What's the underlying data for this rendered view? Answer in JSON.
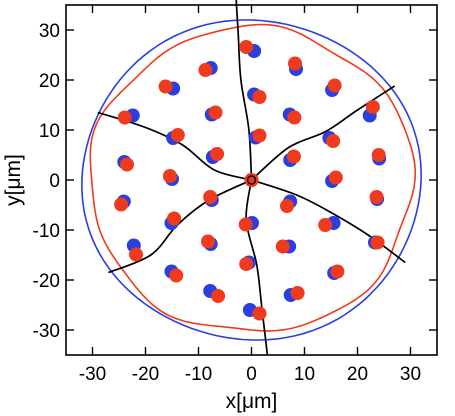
{
  "chart_data": {
    "type": "scatter",
    "title": "",
    "xlabel": "x[μm]",
    "ylabel": "y[μm]",
    "xlim": [
      -35,
      35
    ],
    "ylim": [
      -35,
      35
    ],
    "xticks": [
      -30,
      -20,
      -10,
      0,
      10,
      20,
      30
    ],
    "yticks": [
      -30,
      -20,
      -10,
      0,
      10,
      20,
      30
    ],
    "grid": false,
    "legend": "none",
    "colors": {
      "blue": "#2a3fe0",
      "red": "#ef3b1d",
      "curves": "#000000",
      "axes": "#000000"
    },
    "boundaries": [
      {
        "color": "blue",
        "radius": 32
      },
      {
        "color": "red",
        "radius": 30.5
      }
    ],
    "series": [
      {
        "color": "blue",
        "points": [
          [
            0.5,
            25.8
          ],
          [
            8.4,
            22.2
          ],
          [
            15.2,
            18.0
          ],
          [
            22.3,
            12.9
          ],
          [
            24.1,
            4.3
          ],
          [
            23.7,
            -3.8
          ],
          [
            23.3,
            -12.5
          ],
          [
            15.6,
            -18.6
          ],
          [
            7.4,
            -23.0
          ],
          [
            -0.3,
            -26.0
          ],
          [
            -7.8,
            -22.2
          ],
          [
            -15.1,
            -18.3
          ],
          [
            -22.2,
            -13.1
          ],
          [
            -24.1,
            -4.3
          ],
          [
            -24.0,
            3.6
          ],
          [
            -22.4,
            12.9
          ],
          [
            -14.8,
            18.3
          ],
          [
            -7.7,
            22.4
          ],
          [
            0.5,
            17.1
          ],
          [
            7.2,
            13.1
          ],
          [
            14.7,
            8.4
          ],
          [
            15.2,
            -0.2
          ],
          [
            15.5,
            -8.6
          ],
          [
            7.1,
            -13.3
          ],
          [
            -0.5,
            -16.5
          ],
          [
            -7.7,
            -12.8
          ],
          [
            -15.1,
            -8.6
          ],
          [
            -15.0,
            0.2
          ],
          [
            -14.8,
            8.4
          ],
          [
            -7.5,
            13.1
          ],
          [
            0.8,
            8.5
          ],
          [
            7.3,
            4.0
          ],
          [
            7.3,
            -4.3
          ],
          [
            0.1,
            -8.6
          ],
          [
            -7.5,
            -4.0
          ],
          [
            -7.3,
            4.6
          ],
          [
            0,
            0
          ]
        ]
      },
      {
        "color": "red",
        "points": [
          [
            -1.0,
            26.6
          ],
          [
            8.2,
            23.3
          ],
          [
            15.7,
            18.9
          ],
          [
            22.9,
            14.6
          ],
          [
            24.0,
            5.0
          ],
          [
            23.6,
            -3.4
          ],
          [
            23.8,
            -12.5
          ],
          [
            16.2,
            -18.3
          ],
          [
            8.7,
            -22.6
          ],
          [
            1.5,
            -26.7
          ],
          [
            -6.3,
            -23.2
          ],
          [
            -14.2,
            -19.1
          ],
          [
            -21.8,
            -14.9
          ],
          [
            -24.6,
            -4.9
          ],
          [
            -23.5,
            3.1
          ],
          [
            -23.9,
            12.5
          ],
          [
            -16.2,
            18.7
          ],
          [
            -8.7,
            22.0
          ],
          [
            1.5,
            16.6
          ],
          [
            8.1,
            12.5
          ],
          [
            15.4,
            7.8
          ],
          [
            15.9,
            0.5
          ],
          [
            13.9,
            -9.0
          ],
          [
            5.9,
            -13.3
          ],
          [
            -1.0,
            -16.8
          ],
          [
            -8.2,
            -12.3
          ],
          [
            -14.6,
            -7.7
          ],
          [
            -15.4,
            0.8
          ],
          [
            -13.9,
            9.0
          ],
          [
            -6.8,
            13.5
          ],
          [
            1.5,
            8.9
          ],
          [
            8.0,
            4.7
          ],
          [
            6.7,
            -5.2
          ],
          [
            -1.1,
            -8.9
          ],
          [
            -7.8,
            -3.4
          ],
          [
            -6.5,
            5.2
          ],
          [
            0,
            0
          ]
        ]
      }
    ],
    "curves": [
      {
        "points": [
          [
            0,
            0
          ],
          [
            -0.5,
            10
          ],
          [
            -2,
            20
          ],
          [
            -2.5,
            29
          ],
          [
            -3,
            38
          ]
        ]
      },
      {
        "points": [
          [
            0,
            0
          ],
          [
            7,
            6.5
          ],
          [
            14,
            9.7
          ],
          [
            20,
            14
          ],
          [
            27,
            18.8
          ]
        ]
      },
      {
        "points": [
          [
            0,
            0
          ],
          [
            8.5,
            -3
          ],
          [
            15,
            -6.5
          ],
          [
            22,
            -11
          ],
          [
            29,
            -16.5
          ]
        ]
      },
      {
        "points": [
          [
            0,
            0
          ],
          [
            -1,
            -8
          ],
          [
            1,
            -17
          ],
          [
            2,
            -26
          ],
          [
            3,
            -35
          ]
        ]
      },
      {
        "points": [
          [
            0,
            0
          ],
          [
            -8,
            -4
          ],
          [
            -14,
            -9
          ],
          [
            -19,
            -15
          ],
          [
            -27,
            -18.5
          ]
        ]
      },
      {
        "points": [
          [
            0,
            0
          ],
          [
            -7,
            2
          ],
          [
            -13,
            7
          ],
          [
            -20,
            10.5
          ],
          [
            -29,
            13.5
          ]
        ]
      }
    ]
  }
}
